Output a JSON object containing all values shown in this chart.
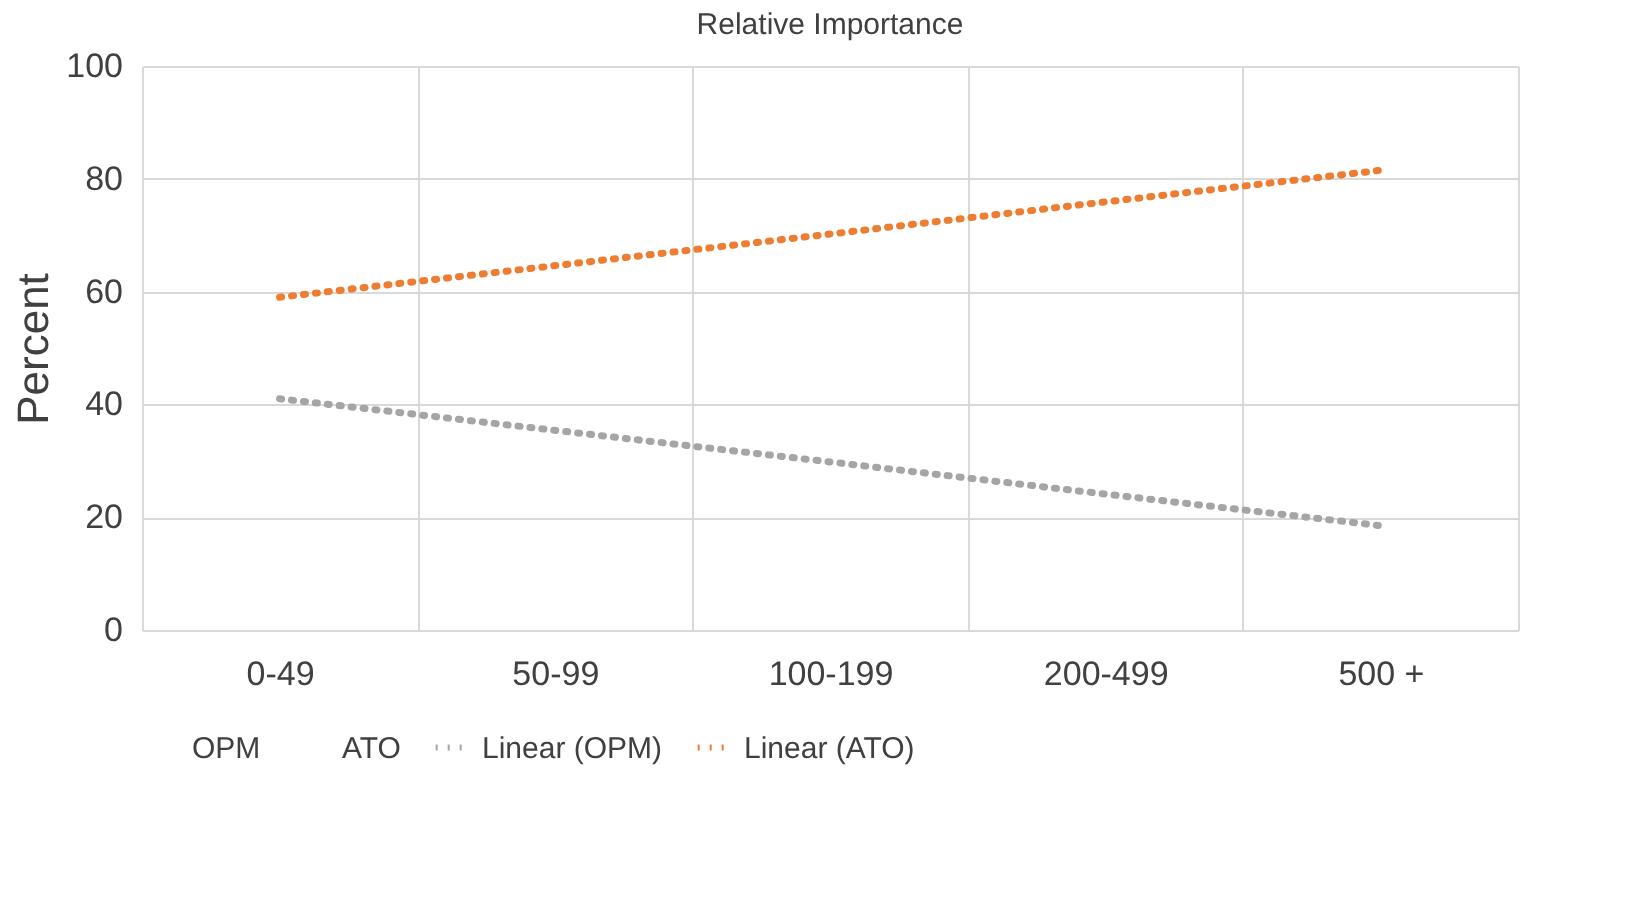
{
  "chart_data": {
    "type": "line",
    "title": "Relative Importance",
    "ylabel": "Percent",
    "categories": [
      "0-49",
      "50-99",
      "100-199",
      "200-499",
      "500 +"
    ],
    "series": [
      {
        "name": "OPM",
        "values": [
          null,
          null,
          null,
          null,
          null
        ]
      },
      {
        "name": "ATO",
        "values": [
          null,
          null,
          null,
          null,
          null
        ]
      },
      {
        "name": "Linear (OPM)",
        "color": "#a5a5a5",
        "values": [
          41,
          35.4,
          29.8,
          24.1,
          18.5
        ]
      },
      {
        "name": "Linear (ATO)",
        "color": "#ed7d31",
        "values": [
          59,
          64.6,
          70.2,
          75.9,
          81.5
        ]
      }
    ],
    "ylim": [
      0,
      100
    ],
    "yticks": [
      0,
      20,
      40,
      60,
      80,
      100
    ],
    "grid": true,
    "legend": "bottom",
    "line_style": "dotted"
  }
}
